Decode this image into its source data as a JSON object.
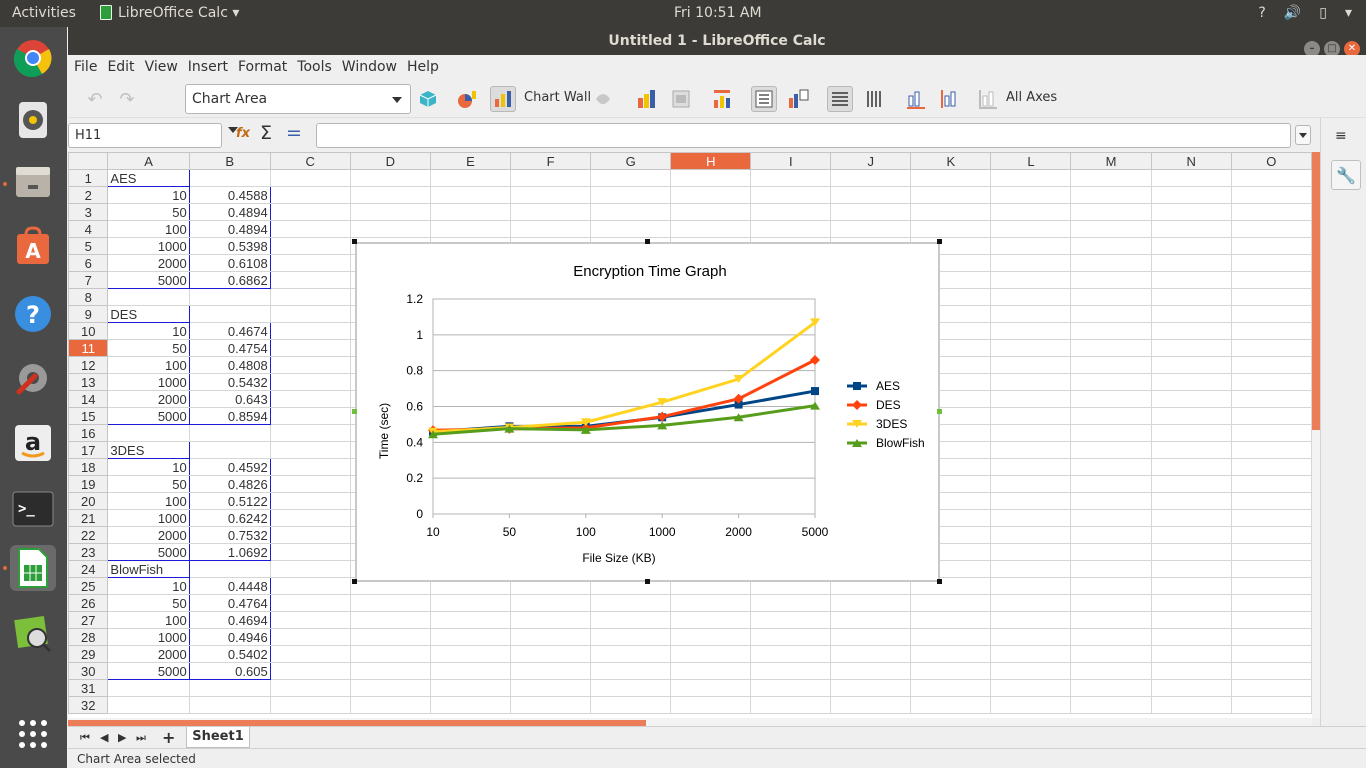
{
  "topbar": {
    "activities": "Activities",
    "app_name": "LibreOffice Calc",
    "clock": "Fri 10:51 AM"
  },
  "window": {
    "title": "Untitled 1 - LibreOffice Calc"
  },
  "menu": [
    "File",
    "Edit",
    "View",
    "Insert",
    "Format",
    "Tools",
    "Window",
    "Help"
  ],
  "toolbar": {
    "element_select": "Chart Area",
    "chart_wall_label": "Chart Wall",
    "all_axes_label": "All Axes"
  },
  "formula": {
    "cell_ref": "H11",
    "content": ""
  },
  "columns": [
    "A",
    "B",
    "C",
    "D",
    "E",
    "F",
    "G",
    "H",
    "I",
    "J",
    "K",
    "L",
    "M",
    "N",
    "O"
  ],
  "selected_column": "H",
  "selected_row": 11,
  "cells": [
    [
      "AES",
      ""
    ],
    [
      "10",
      "0.4588"
    ],
    [
      "50",
      "0.4894"
    ],
    [
      "100",
      "0.4894"
    ],
    [
      "1000",
      "0.5398"
    ],
    [
      "2000",
      "0.6108"
    ],
    [
      "5000",
      "0.6862"
    ],
    [
      "",
      ""
    ],
    [
      "DES",
      ""
    ],
    [
      "10",
      "0.4674"
    ],
    [
      "50",
      "0.4754"
    ],
    [
      "100",
      "0.4808"
    ],
    [
      "1000",
      "0.5432"
    ],
    [
      "2000",
      "0.643"
    ],
    [
      "5000",
      "0.8594"
    ],
    [
      "",
      ""
    ],
    [
      "3DES",
      ""
    ],
    [
      "10",
      "0.4592"
    ],
    [
      "50",
      "0.4826"
    ],
    [
      "100",
      "0.5122"
    ],
    [
      "1000",
      "0.6242"
    ],
    [
      "2000",
      "0.7532"
    ],
    [
      "5000",
      "1.0692"
    ],
    [
      "BlowFish",
      ""
    ],
    [
      "10",
      "0.4448"
    ],
    [
      "50",
      "0.4764"
    ],
    [
      "100",
      "0.4694"
    ],
    [
      "1000",
      "0.4946"
    ],
    [
      "2000",
      "0.5402"
    ],
    [
      "5000",
      "0.605"
    ],
    [
      "",
      ""
    ],
    [
      "",
      ""
    ]
  ],
  "chart_data": {
    "type": "line",
    "title": "Encryption Time Graph",
    "xlabel": "File Size (KB)",
    "ylabel": "Time (sec)",
    "categories": [
      "10",
      "50",
      "100",
      "1000",
      "2000",
      "5000"
    ],
    "ylim": [
      0,
      1.2
    ],
    "yticks": [
      "0",
      "0.2",
      "0.4",
      "0.6",
      "0.8",
      "1",
      "1.2"
    ],
    "grid": true,
    "legend_position": "right",
    "series": [
      {
        "name": "AES",
        "color": "#004586",
        "marker": "square",
        "values": [
          0.4588,
          0.4894,
          0.4894,
          0.5398,
          0.6108,
          0.6862
        ]
      },
      {
        "name": "DES",
        "color": "#ff420e",
        "marker": "diamond",
        "values": [
          0.4674,
          0.4754,
          0.4808,
          0.5432,
          0.643,
          0.8594
        ]
      },
      {
        "name": "3DES",
        "color": "#ffd320",
        "marker": "triangle-down",
        "values": [
          0.4592,
          0.4826,
          0.5122,
          0.6242,
          0.7532,
          1.0692
        ]
      },
      {
        "name": "BlowFish",
        "color": "#579d1c",
        "marker": "triangle-up",
        "values": [
          0.4448,
          0.4764,
          0.4694,
          0.4946,
          0.5402,
          0.605
        ]
      }
    ]
  },
  "sheet_tabs": [
    "Sheet1"
  ],
  "status": {
    "text": "Chart Area selected"
  },
  "colors": {
    "accent": "#e9683d",
    "selection_border": "#1c1cd8"
  }
}
